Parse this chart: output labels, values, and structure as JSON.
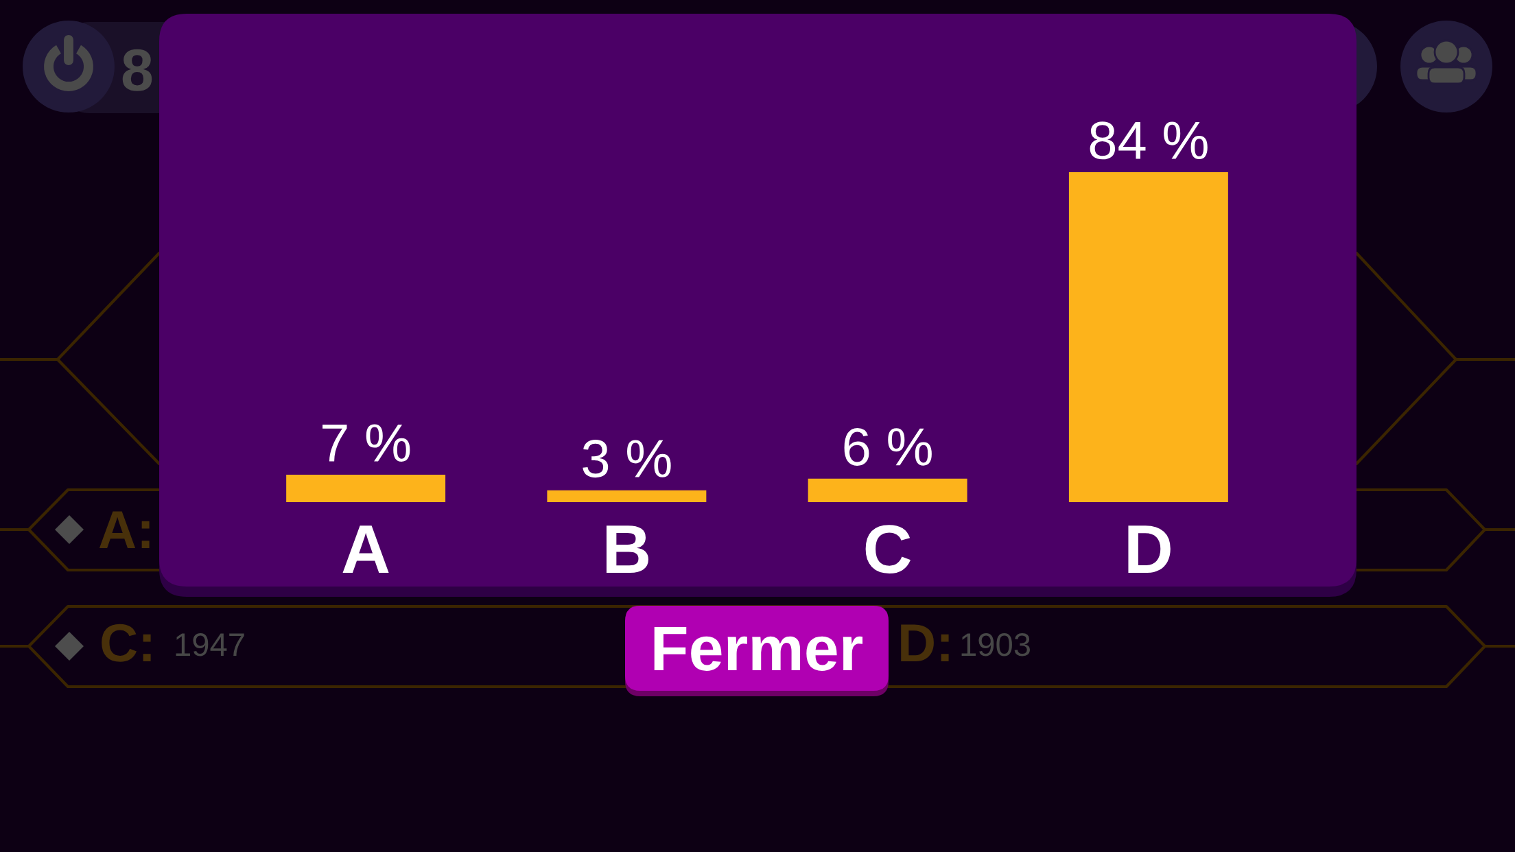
{
  "chart_data": {
    "type": "bar",
    "categories": [
      "A",
      "B",
      "C",
      "D"
    ],
    "values": [
      7,
      3,
      6,
      84
    ],
    "value_labels": [
      "7 %",
      "3 %",
      "6 %",
      "84 %"
    ],
    "color": "#fdb31b",
    "tick_labels": "x",
    "annotations": [
      "8",
      "A:",
      "C:",
      "1947",
      "Fermer",
      "D:",
      "1903"
    ]
  }
}
